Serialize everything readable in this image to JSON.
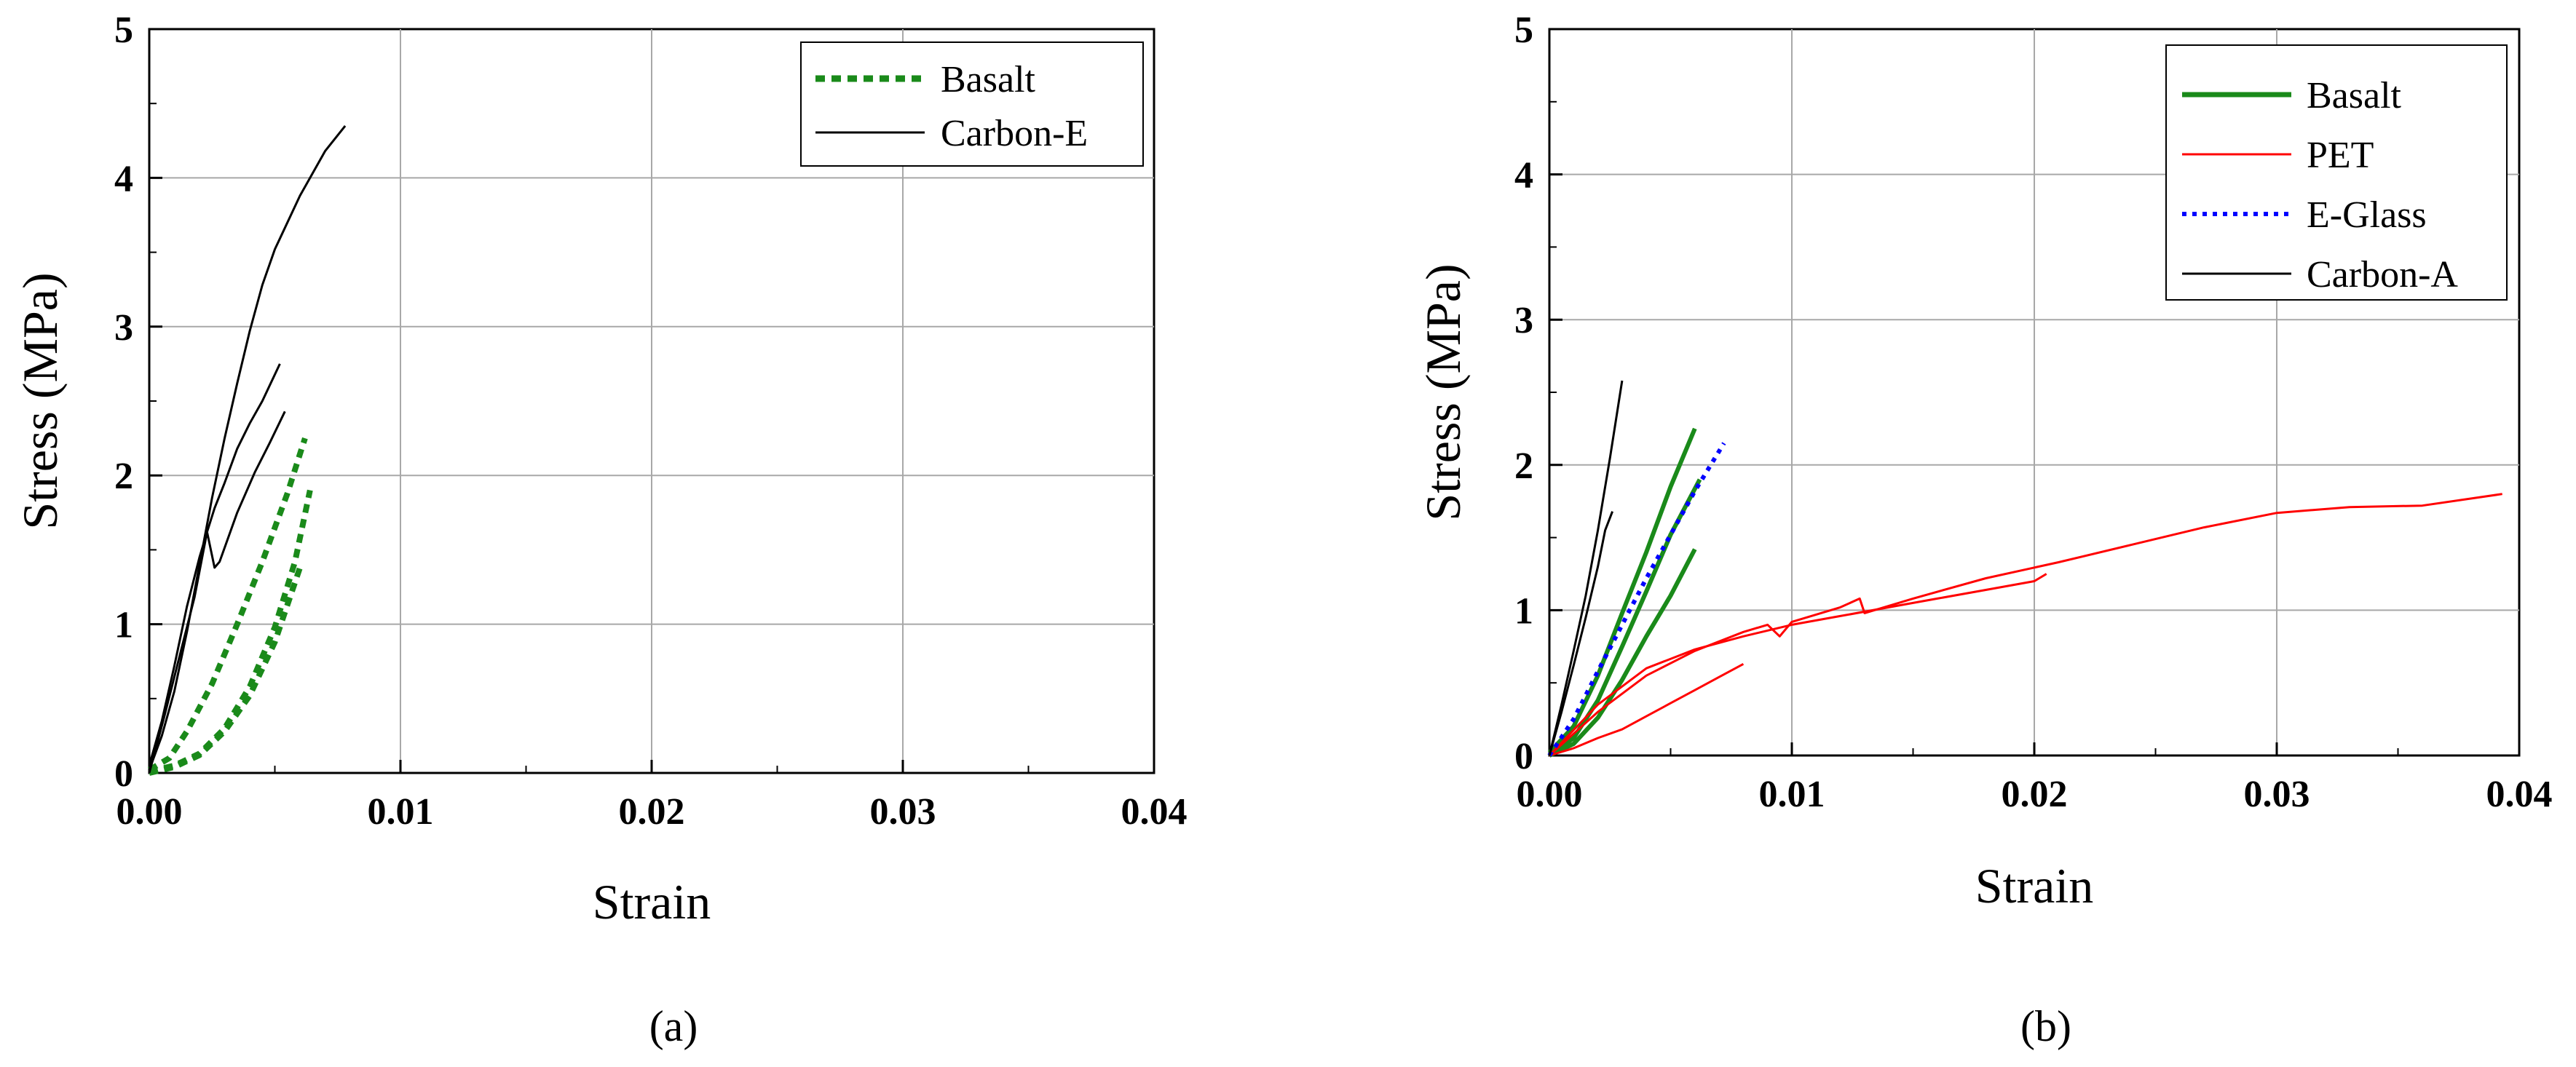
{
  "chart_data": [
    {
      "type": "line",
      "panel_label": "(a)",
      "xlabel": "Strain",
      "ylabel": "Stress (MPa)",
      "xlim": [
        0,
        0.04
      ],
      "ylim": [
        0,
        5
      ],
      "xticks": [
        0.0,
        0.01,
        0.02,
        0.03,
        0.04
      ],
      "xtick_labels": [
        "0.00",
        "0.01",
        "0.02",
        "0.03",
        "0.04"
      ],
      "yticks": [
        0,
        1,
        2,
        3,
        4,
        5
      ],
      "ytick_labels": [
        "0",
        "1",
        "2",
        "3",
        "4",
        "5"
      ],
      "grid": true,
      "legend_position": "top-right",
      "legend": [
        {
          "name": "Basalt",
          "color": "#1a8a1a",
          "style": "dotted"
        },
        {
          "name": "Carbon-E",
          "color": "#000000",
          "style": "solid"
        }
      ],
      "series": [
        {
          "name": "Basalt",
          "color": "#1a8a1a",
          "style": "dotted",
          "points": [
            [
              0,
              0.02
            ],
            [
              0.0008,
              0.1
            ],
            [
              0.0015,
              0.28
            ],
            [
              0.0025,
              0.6
            ],
            [
              0.0035,
              1.0
            ],
            [
              0.0045,
              1.42
            ],
            [
              0.0055,
              1.88
            ],
            [
              0.0062,
              2.25
            ]
          ]
        },
        {
          "name": "Basalt",
          "color": "#1a8a1a",
          "style": "dotted",
          "points": [
            [
              0,
              0.01
            ],
            [
              0.001,
              0.05
            ],
            [
              0.002,
              0.13
            ],
            [
              0.003,
              0.3
            ],
            [
              0.004,
              0.58
            ],
            [
              0.005,
              0.98
            ],
            [
              0.0058,
              1.42
            ],
            [
              0.0064,
              1.9
            ]
          ]
        },
        {
          "name": "Basalt",
          "color": "#1a8a1a",
          "style": "dotted",
          "points": [
            [
              0,
              0.0
            ],
            [
              0.001,
              0.04
            ],
            [
              0.002,
              0.12
            ],
            [
              0.003,
              0.28
            ],
            [
              0.004,
              0.52
            ],
            [
              0.005,
              0.88
            ],
            [
              0.006,
              1.38
            ]
          ]
        },
        {
          "name": "Carbon-E",
          "color": "#000000",
          "style": "solid",
          "points": [
            [
              0,
              0.02
            ],
            [
              0.0005,
              0.25
            ],
            [
              0.001,
              0.55
            ],
            [
              0.0015,
              0.95
            ],
            [
              0.002,
              1.4
            ],
            [
              0.0025,
              1.85
            ],
            [
              0.003,
              2.25
            ],
            [
              0.0035,
              2.62
            ],
            [
              0.004,
              2.97
            ],
            [
              0.0045,
              3.28
            ],
            [
              0.005,
              3.52
            ],
            [
              0.006,
              3.88
            ],
            [
              0.007,
              4.18
            ],
            [
              0.0078,
              4.35
            ]
          ]
        },
        {
          "name": "Carbon-E",
          "color": "#000000",
          "style": "solid",
          "points": [
            [
              0,
              0.05
            ],
            [
              0.0005,
              0.35
            ],
            [
              0.001,
              0.72
            ],
            [
              0.0015,
              1.12
            ],
            [
              0.002,
              1.45
            ],
            [
              0.0023,
              1.62
            ],
            [
              0.0026,
              1.78
            ],
            [
              0.003,
              1.95
            ],
            [
              0.0035,
              2.18
            ],
            [
              0.004,
              2.35
            ],
            [
              0.0045,
              2.5
            ],
            [
              0.0052,
              2.75
            ]
          ]
        },
        {
          "name": "Carbon-E",
          "color": "#000000",
          "style": "solid",
          "points": [
            [
              0,
              0.0
            ],
            [
              0.0006,
              0.38
            ],
            [
              0.0012,
              0.78
            ],
            [
              0.0018,
              1.18
            ],
            [
              0.0023,
              1.62
            ],
            [
              0.0026,
              1.38
            ],
            [
              0.0028,
              1.42
            ],
            [
              0.0035,
              1.75
            ],
            [
              0.0042,
              2.02
            ],
            [
              0.0048,
              2.22
            ],
            [
              0.0054,
              2.43
            ]
          ]
        }
      ]
    },
    {
      "type": "line",
      "panel_label": "(b)",
      "xlabel": "Strain",
      "ylabel": "Stress (MPa)",
      "xlim": [
        0,
        0.04
      ],
      "ylim": [
        0,
        5
      ],
      "xticks": [
        0.0,
        0.01,
        0.02,
        0.03,
        0.04
      ],
      "xtick_labels": [
        "0.00",
        "0.01",
        "0.02",
        "0.03",
        "0.04"
      ],
      "yticks": [
        0,
        1,
        2,
        3,
        4,
        5
      ],
      "ytick_labels": [
        "0",
        "1",
        "2",
        "3",
        "4",
        "5"
      ],
      "grid": true,
      "legend_position": "top-right",
      "legend": [
        {
          "name": "Basalt",
          "color": "#1a8a1a",
          "style": "solid-thick"
        },
        {
          "name": "PET",
          "color": "#ff0000",
          "style": "solid"
        },
        {
          "name": "E-Glass",
          "color": "#0000ff",
          "style": "dotted"
        },
        {
          "name": "Carbon-A",
          "color": "#000000",
          "style": "solid"
        }
      ],
      "series": [
        {
          "name": "Basalt",
          "color": "#1a8a1a",
          "style": "solid-thick",
          "points": [
            [
              0,
              0.02
            ],
            [
              0.001,
              0.2
            ],
            [
              0.002,
              0.55
            ],
            [
              0.003,
              0.98
            ],
            [
              0.004,
              1.4
            ],
            [
              0.005,
              1.85
            ],
            [
              0.006,
              2.25
            ]
          ]
        },
        {
          "name": "Basalt",
          "color": "#1a8a1a",
          "style": "solid-thick",
          "points": [
            [
              0,
              0.0
            ],
            [
              0.001,
              0.12
            ],
            [
              0.002,
              0.38
            ],
            [
              0.003,
              0.75
            ],
            [
              0.004,
              1.13
            ],
            [
              0.005,
              1.52
            ],
            [
              0.0062,
              1.9
            ]
          ]
        },
        {
          "name": "Basalt",
          "color": "#1a8a1a",
          "style": "solid-thick",
          "points": [
            [
              0,
              0.0
            ],
            [
              0.001,
              0.08
            ],
            [
              0.002,
              0.26
            ],
            [
              0.003,
              0.52
            ],
            [
              0.004,
              0.82
            ],
            [
              0.005,
              1.1
            ],
            [
              0.006,
              1.42
            ]
          ]
        },
        {
          "name": "PET",
          "color": "#ff0000",
          "style": "solid",
          "points": [
            [
              0,
              0.0
            ],
            [
              0.002,
              0.3
            ],
            [
              0.004,
              0.55
            ],
            [
              0.006,
              0.72
            ],
            [
              0.008,
              0.85
            ],
            [
              0.009,
              0.9
            ],
            [
              0.0095,
              0.82
            ],
            [
              0.01,
              0.92
            ],
            [
              0.012,
              1.02
            ],
            [
              0.0128,
              1.08
            ],
            [
              0.013,
              0.98
            ],
            [
              0.015,
              1.08
            ],
            [
              0.018,
              1.22
            ],
            [
              0.021,
              1.33
            ],
            [
              0.024,
              1.45
            ],
            [
              0.027,
              1.57
            ],
            [
              0.03,
              1.67
            ],
            [
              0.033,
              1.71
            ],
            [
              0.036,
              1.72
            ],
            [
              0.0393,
              1.8
            ]
          ]
        },
        {
          "name": "PET",
          "color": "#ff0000",
          "style": "solid",
          "points": [
            [
              0,
              0.0
            ],
            [
              0.002,
              0.35
            ],
            [
              0.004,
              0.6
            ],
            [
              0.006,
              0.73
            ],
            [
              0.008,
              0.82
            ],
            [
              0.01,
              0.9
            ],
            [
              0.012,
              0.96
            ],
            [
              0.014,
              1.02
            ],
            [
              0.016,
              1.08
            ],
            [
              0.018,
              1.14
            ],
            [
              0.02,
              1.2
            ],
            [
              0.0205,
              1.25
            ]
          ]
        },
        {
          "name": "PET",
          "color": "#ff0000",
          "style": "solid",
          "points": [
            [
              0,
              0.0
            ],
            [
              0.001,
              0.05
            ],
            [
              0.002,
              0.12
            ],
            [
              0.003,
              0.18
            ],
            [
              0.004,
              0.27
            ],
            [
              0.005,
              0.36
            ],
            [
              0.006,
              0.45
            ],
            [
              0.007,
              0.54
            ],
            [
              0.008,
              0.63
            ]
          ]
        },
        {
          "name": "E-Glass",
          "color": "#0000ff",
          "style": "dotted",
          "points": [
            [
              0,
              0.0
            ],
            [
              0.001,
              0.25
            ],
            [
              0.002,
              0.58
            ],
            [
              0.003,
              0.9
            ],
            [
              0.004,
              1.22
            ],
            [
              0.005,
              1.52
            ],
            [
              0.006,
              1.82
            ],
            [
              0.0072,
              2.15
            ]
          ]
        },
        {
          "name": "Carbon-A",
          "color": "#000000",
          "style": "solid",
          "points": [
            [
              0,
              0.0
            ],
            [
              0.0005,
              0.35
            ],
            [
              0.001,
              0.72
            ],
            [
              0.0015,
              1.1
            ],
            [
              0.002,
              1.55
            ],
            [
              0.0025,
              2.05
            ],
            [
              0.003,
              2.58
            ]
          ]
        },
        {
          "name": "Carbon-A",
          "color": "#000000",
          "style": "solid",
          "points": [
            [
              0,
              0.0
            ],
            [
              0.0005,
              0.3
            ],
            [
              0.001,
              0.62
            ],
            [
              0.0015,
              0.95
            ],
            [
              0.002,
              1.3
            ],
            [
              0.0023,
              1.55
            ],
            [
              0.0026,
              1.68
            ]
          ]
        }
      ]
    }
  ]
}
